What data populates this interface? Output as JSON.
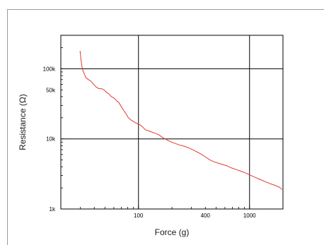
{
  "chart_data": {
    "type": "line",
    "xlabel": "Force (g)",
    "ylabel": "Resistance (Ω)",
    "x_scale": "log",
    "y_scale": "log",
    "xlim": [
      20,
      2000
    ],
    "ylim": [
      1000,
      300000
    ],
    "grid": true,
    "x_ticks": [
      {
        "value": 100,
        "label": "100"
      },
      {
        "value": 400,
        "label": "400"
      },
      {
        "value": 1000,
        "label": "1000"
      }
    ],
    "y_ticks": [
      {
        "value": 1000,
        "label": "1k"
      },
      {
        "value": 10000,
        "label": "10k"
      },
      {
        "value": 50000,
        "label": "50k"
      },
      {
        "value": 100000,
        "label": "100k"
      }
    ],
    "x_gridlines": [
      100,
      1000
    ],
    "y_gridlines": [
      10000,
      100000
    ],
    "series": [
      {
        "color": "#e03a2f",
        "points": [
          [
            29.8,
            180000
          ],
          [
            30.3,
            140000
          ],
          [
            30.9,
            110000
          ],
          [
            31.5,
            95000
          ],
          [
            32.5,
            85000
          ],
          [
            33.5,
            75000
          ],
          [
            35.5,
            70000
          ],
          [
            37.5,
            66000
          ],
          [
            39.5,
            60000
          ],
          [
            41.5,
            55000
          ],
          [
            44,
            52000
          ],
          [
            46.5,
            52000
          ],
          [
            49,
            50000
          ],
          [
            51.5,
            46000
          ],
          [
            54,
            44000
          ],
          [
            57,
            40000
          ],
          [
            60.5,
            38000
          ],
          [
            63.5,
            35000
          ],
          [
            66.5,
            33000
          ],
          [
            70,
            29000
          ],
          [
            73,
            26000
          ],
          [
            77,
            23000
          ],
          [
            81,
            20000
          ],
          [
            86,
            18500
          ],
          [
            91,
            17500
          ],
          [
            97,
            16500
          ],
          [
            102,
            16000
          ],
          [
            108,
            15000
          ],
          [
            115,
            13500
          ],
          [
            123,
            13000
          ],
          [
            132,
            12500
          ],
          [
            142,
            12000
          ],
          [
            152,
            11500
          ],
          [
            162,
            10700
          ],
          [
            173,
            10000
          ],
          [
            185,
            9500
          ],
          [
            198,
            9000
          ],
          [
            214,
            8600
          ],
          [
            234,
            8200
          ],
          [
            256,
            7900
          ],
          [
            280,
            7500
          ],
          [
            308,
            7000
          ],
          [
            338,
            6500
          ],
          [
            370,
            6000
          ],
          [
            403,
            5500
          ],
          [
            440,
            5000
          ],
          [
            480,
            4700
          ],
          [
            525,
            4500
          ],
          [
            575,
            4300
          ],
          [
            630,
            4100
          ],
          [
            690,
            3850
          ],
          [
            760,
            3650
          ],
          [
            840,
            3450
          ],
          [
            930,
            3250
          ],
          [
            1030,
            3000
          ],
          [
            1140,
            2800
          ],
          [
            1260,
            2620
          ],
          [
            1390,
            2450
          ],
          [
            1530,
            2300
          ],
          [
            1690,
            2180
          ],
          [
            1850,
            2050
          ],
          [
            1960,
            1900
          ]
        ]
      }
    ]
  }
}
